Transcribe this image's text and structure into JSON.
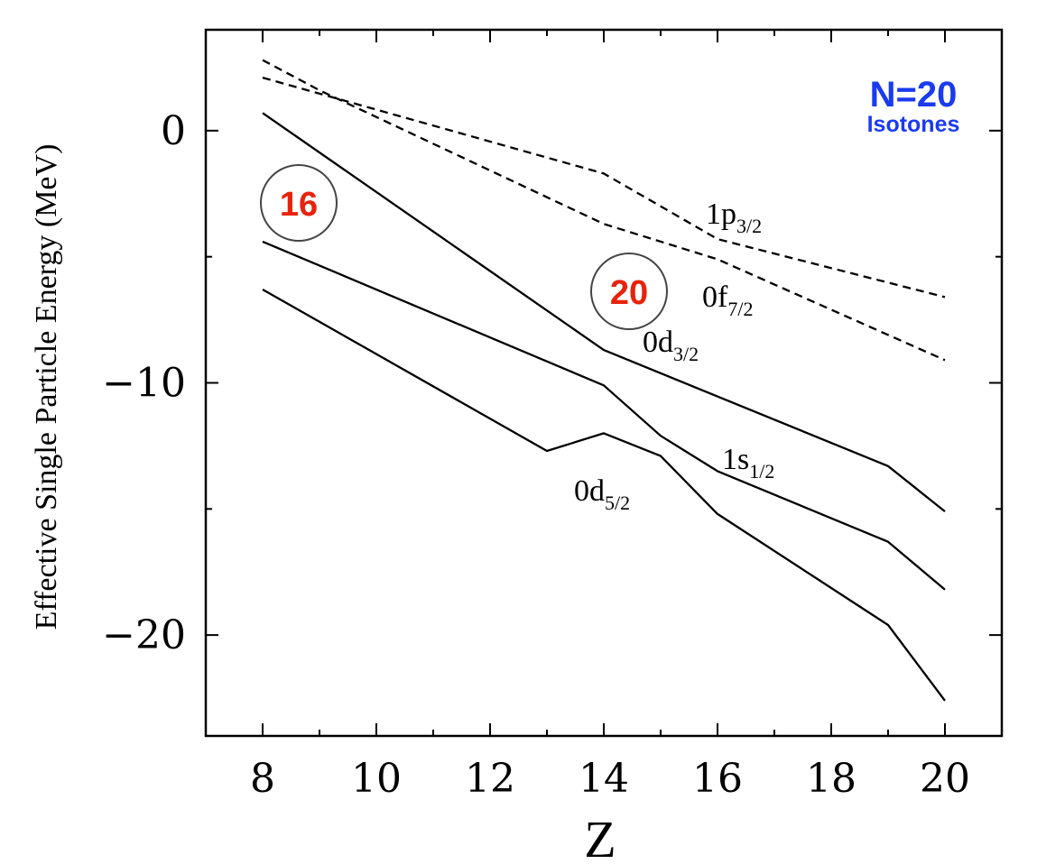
{
  "chart_data": {
    "type": "line",
    "title": "",
    "xlabel": "Z",
    "ylabel": "Effective Single Particle Energy (MeV)",
    "xlim": [
      7,
      21
    ],
    "ylim": [
      -24,
      4
    ],
    "x_ticks": [
      8,
      10,
      12,
      14,
      16,
      18,
      20
    ],
    "x_tick_labels": [
      "8",
      "10",
      "12",
      "14",
      "16",
      "18",
      "20"
    ],
    "x_minor_step": 1,
    "y_ticks": [
      0,
      -10,
      -20
    ],
    "y_tick_labels": [
      "0",
      "−10",
      "−20"
    ],
    "y_minor_step": 5,
    "grid": false,
    "series": [
      {
        "key": "0d52",
        "label_main": "0d",
        "label_sub": "5/2",
        "style": "solid",
        "points": [
          [
            8,
            -6.3
          ],
          [
            13,
            -12.7
          ],
          [
            14,
            -12.0
          ],
          [
            15,
            -12.9
          ],
          [
            16,
            -15.2
          ],
          [
            19,
            -19.6
          ],
          [
            20,
            -22.6
          ]
        ]
      },
      {
        "key": "1s12",
        "label_main": "1s",
        "label_sub": "1/2",
        "style": "solid",
        "points": [
          [
            8,
            -4.4
          ],
          [
            14,
            -10.1
          ],
          [
            15,
            -12.1
          ],
          [
            16,
            -13.5
          ],
          [
            19,
            -16.3
          ],
          [
            20,
            -18.2
          ]
        ]
      },
      {
        "key": "0d32",
        "label_main": "0d",
        "label_sub": "3/2",
        "style": "solid",
        "points": [
          [
            8,
            0.7
          ],
          [
            14,
            -8.7
          ],
          [
            19,
            -13.3
          ],
          [
            20,
            -15.1
          ]
        ]
      },
      {
        "key": "0f72",
        "label_main": "0f",
        "label_sub": "7/2",
        "style": "dashed",
        "points": [
          [
            8,
            2.8
          ],
          [
            9,
            1.6
          ],
          [
            14,
            -3.7
          ],
          [
            16,
            -5.1
          ],
          [
            20,
            -9.1
          ]
        ]
      },
      {
        "key": "1p32",
        "label_main": "1p",
        "label_sub": "3/2",
        "style": "dashed",
        "points": [
          [
            8,
            2.1
          ],
          [
            14,
            -1.7
          ],
          [
            16,
            -4.3
          ],
          [
            20,
            -6.6
          ]
        ]
      }
    ],
    "annotations": {
      "circled_numbers": [
        "16",
        "20"
      ],
      "isotone_title": "N=20",
      "isotone_subtitle": "Isotones"
    },
    "colors": {
      "circled_number": "#e8220c",
      "isotone_text": "#1a3bef"
    }
  }
}
